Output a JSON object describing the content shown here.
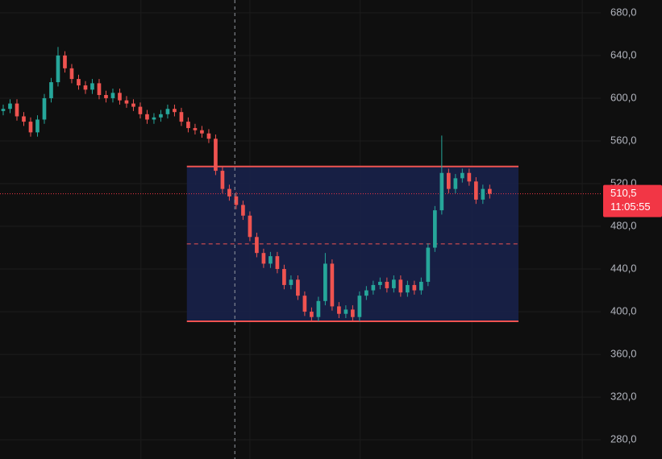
{
  "chart_data": {
    "type": "candlestick",
    "open": [
      588,
      590,
      595,
      583,
      578,
      568,
      580,
      600,
      615,
      640,
      628,
      618,
      612,
      608,
      614,
      603,
      600,
      605,
      598,
      595,
      592,
      585,
      580,
      582,
      585,
      590,
      587,
      578,
      572,
      570,
      567,
      562,
      532,
      515,
      508,
      500,
      490,
      470,
      455,
      445,
      452,
      440,
      425,
      430,
      415,
      400,
      395,
      410,
      445,
      405,
      398,
      402,
      395,
      415,
      420,
      425,
      428,
      422,
      430,
      418,
      425,
      420,
      428,
      460,
      495,
      530,
      515,
      525,
      530,
      522,
      505,
      515
    ],
    "high": [
      594,
      599,
      599,
      587,
      582,
      584,
      604,
      619,
      648,
      644,
      632,
      622,
      616,
      618,
      618,
      607,
      609,
      609,
      602,
      599,
      596,
      589,
      586,
      589,
      594,
      594,
      591,
      582,
      576,
      574,
      571,
      566,
      536,
      519,
      512,
      504,
      494,
      474,
      459,
      456,
      456,
      444,
      434,
      434,
      419,
      404,
      414,
      455,
      449,
      409,
      406,
      406,
      419,
      424,
      429,
      432,
      432,
      434,
      434,
      429,
      429,
      432,
      464,
      499,
      565,
      534,
      529,
      534,
      534,
      526,
      519,
      519
    ],
    "low": [
      584,
      586,
      579,
      574,
      564,
      564,
      576,
      596,
      611,
      624,
      614,
      608,
      604,
      604,
      599,
      596,
      596,
      594,
      591,
      588,
      581,
      576,
      576,
      578,
      581,
      583,
      574,
      568,
      566,
      563,
      558,
      528,
      511,
      504,
      496,
      486,
      466,
      451,
      441,
      441,
      436,
      421,
      421,
      411,
      396,
      391,
      391,
      406,
      401,
      394,
      394,
      391,
      391,
      411,
      416,
      421,
      418,
      418,
      414,
      414,
      416,
      416,
      424,
      456,
      491,
      511,
      511,
      521,
      518,
      501,
      501,
      506
    ],
    "close": [
      590,
      595,
      583,
      578,
      568,
      580,
      600,
      615,
      640,
      628,
      618,
      612,
      608,
      614,
      603,
      600,
      605,
      598,
      595,
      592,
      585,
      580,
      582,
      585,
      590,
      587,
      578,
      572,
      570,
      567,
      562,
      532,
      515,
      508,
      500,
      490,
      470,
      455,
      445,
      452,
      440,
      425,
      430,
      415,
      400,
      395,
      410,
      445,
      405,
      398,
      402,
      395,
      415,
      420,
      425,
      428,
      422,
      430,
      418,
      425,
      420,
      428,
      460,
      495,
      530,
      515,
      525,
      530,
      522,
      505,
      515,
      510.5
    ],
    "up_color": "#26a69a",
    "down_color": "#ef5350",
    "xlim": [
      -0.47,
      87.2
    ],
    "ylim": [
      262,
      692
    ],
    "yticks": [
      {
        "value": 680,
        "label": "680,0"
      },
      {
        "value": 640,
        "label": "640,0"
      },
      {
        "value": 600,
        "label": "600,0"
      },
      {
        "value": 560,
        "label": "560,0"
      },
      {
        "value": 520,
        "label": "520,0"
      },
      {
        "value": 480,
        "label": "480,0"
      },
      {
        "value": 440,
        "label": "440,0"
      },
      {
        "value": 400,
        "label": "400,0"
      },
      {
        "value": 360,
        "label": "360,0"
      },
      {
        "value": 320,
        "label": "320,0"
      },
      {
        "value": 280,
        "label": "280,0"
      }
    ],
    "xgrid": [
      20.1,
      36,
      52.1,
      68.4,
      84.5
    ],
    "grid": true,
    "rectangle": {
      "x_start": 26.8,
      "x_end": 75.2,
      "top": 536,
      "bottom": 391,
      "color": "#ef5350"
    },
    "crosshair_x": 33.8,
    "last_price": {
      "value": 510.5,
      "label": "510,5",
      "countdown": "11:05:55",
      "color": "#f23645"
    }
  }
}
